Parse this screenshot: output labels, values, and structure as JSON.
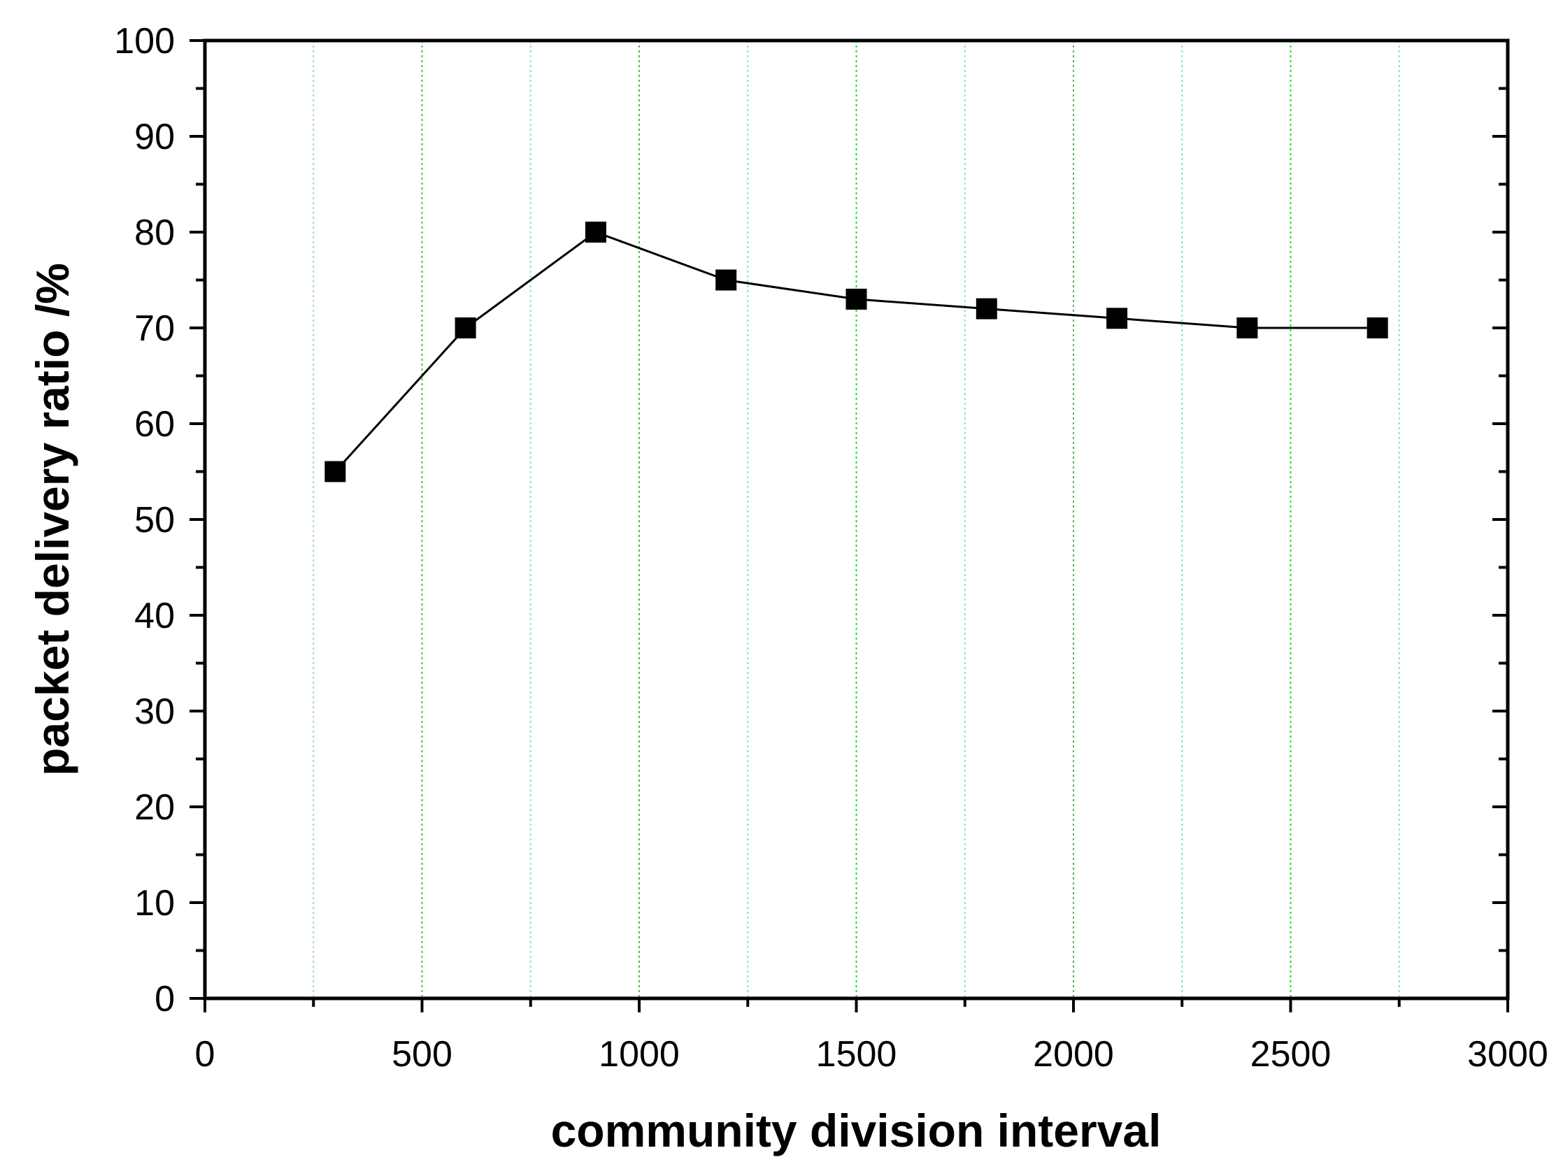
{
  "chart_data": {
    "type": "line",
    "title": "",
    "xlabel": "community division interval",
    "ylabel": "packet delivery ratio /%",
    "xlim": [
      0,
      3000
    ],
    "ylim": [
      0,
      100
    ],
    "x_ticks": [
      0,
      500,
      1000,
      1500,
      2000,
      2500,
      3000
    ],
    "x_tick_labels": [
      "0",
      "500",
      "1000",
      "1500",
      "2000",
      "2500",
      "3000"
    ],
    "y_ticks": [
      0,
      10,
      20,
      30,
      40,
      50,
      60,
      70,
      80,
      90,
      100
    ],
    "y_tick_labels": [
      "0",
      "10",
      "20",
      "30",
      "40",
      "50",
      "60",
      "70",
      "80",
      "90",
      "100"
    ],
    "x_minor_interval": 250,
    "y_minor_interval": 5,
    "grid": "vertical",
    "grid_major_color": "#33cc33",
    "grid_minor_color": "#88dddd",
    "legend": "none",
    "series": [
      {
        "name": "packet delivery ratio",
        "marker": "square",
        "color": "#000000",
        "x": [
          300,
          600,
          900,
          1200,
          1500,
          1800,
          2100,
          2400,
          2700
        ],
        "y": [
          55,
          70,
          80,
          75,
          73,
          72,
          71,
          70,
          70
        ]
      }
    ]
  }
}
